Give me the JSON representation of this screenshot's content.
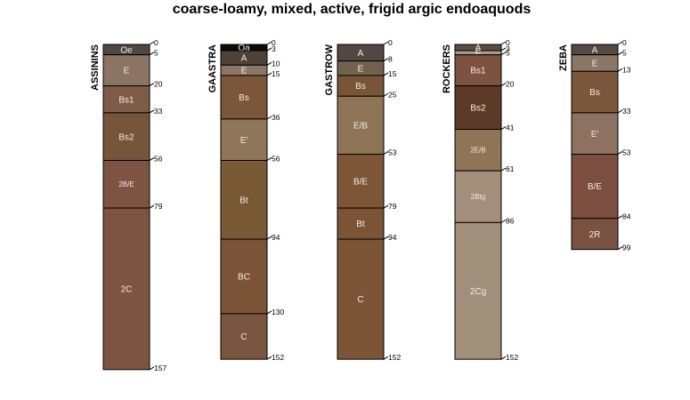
{
  "title": "coarse-loamy, mixed, active, frigid argic endoaquods",
  "profiles": [
    {
      "name": "ASSININS",
      "horizons": [
        {
          "name": "Oe",
          "top": 0,
          "bottom": 5,
          "color": "#4f4842"
        },
        {
          "name": "E",
          "top": 5,
          "bottom": 20,
          "color": "#8b7463"
        },
        {
          "name": "Bs1",
          "top": 20,
          "bottom": 33,
          "color": "#7e5c47"
        },
        {
          "name": "Bs2",
          "top": 33,
          "bottom": 56,
          "color": "#77553b"
        },
        {
          "name": "2B/E",
          "top": 56,
          "bottom": 79,
          "color": "#7c5441"
        },
        {
          "name": "2C",
          "top": 79,
          "bottom": 157,
          "color": "#7d5342"
        }
      ]
    },
    {
      "name": "GAASTRA",
      "horizons": [
        {
          "name": "Oa",
          "top": 0,
          "bottom": 3,
          "color": "#0d0b0a"
        },
        {
          "name": "A",
          "top": 3,
          "bottom": 10,
          "color": "#4e4238"
        },
        {
          "name": "E",
          "top": 10,
          "bottom": 15,
          "color": "#8c7565"
        },
        {
          "name": "Bs",
          "top": 15,
          "bottom": 36,
          "color": "#7c5639"
        },
        {
          "name": "E'",
          "top": 36,
          "bottom": 56,
          "color": "#8f7659"
        },
        {
          "name": "Bt",
          "top": 56,
          "bottom": 94,
          "color": "#7a5a35"
        },
        {
          "name": "BC",
          "top": 94,
          "bottom": 130,
          "color": "#7b5438"
        },
        {
          "name": "C",
          "top": 130,
          "bottom": 152,
          "color": "#7a5540"
        }
      ]
    },
    {
      "name": "GASTROW",
      "horizons": [
        {
          "name": "A",
          "top": 0,
          "bottom": 8,
          "color": "#534741"
        },
        {
          "name": "E",
          "top": 8,
          "bottom": 15,
          "color": "#72624d"
        },
        {
          "name": "Bs",
          "top": 15,
          "bottom": 25,
          "color": "#795537"
        },
        {
          "name": "E/B",
          "top": 25,
          "bottom": 53,
          "color": "#8e7456"
        },
        {
          "name": "B/E",
          "top": 53,
          "bottom": 79,
          "color": "#7c5637"
        },
        {
          "name": "Bt",
          "top": 79,
          "bottom": 94,
          "color": "#7b5435"
        },
        {
          "name": "C",
          "top": 94,
          "bottom": 152,
          "color": "#7b5536"
        }
      ]
    },
    {
      "name": "ROCKERS",
      "horizons": [
        {
          "name": "A",
          "top": 0,
          "bottom": 3,
          "color": "#5a4d43"
        },
        {
          "name": "E",
          "top": 3,
          "bottom": 5,
          "color": "#a8998b"
        },
        {
          "name": "Bs1",
          "top": 5,
          "bottom": 20,
          "color": "#7e5241"
        },
        {
          "name": "Bs2",
          "top": 20,
          "bottom": 41,
          "color": "#5d3a27"
        },
        {
          "name": "2E/B",
          "top": 41,
          "bottom": 61,
          "color": "#8f7456"
        },
        {
          "name": "2Btg",
          "top": 61,
          "bottom": 86,
          "color": "#a28e7a"
        },
        {
          "name": "2Cg",
          "top": 86,
          "bottom": 152,
          "color": "#a08f7b"
        }
      ]
    },
    {
      "name": "ZEBA",
      "horizons": [
        {
          "name": "A",
          "top": 0,
          "bottom": 5,
          "color": "#554a43"
        },
        {
          "name": "E",
          "top": 5,
          "bottom": 13,
          "color": "#8c7666"
        },
        {
          "name": "Bs",
          "top": 13,
          "bottom": 33,
          "color": "#7b573b"
        },
        {
          "name": "E'",
          "top": 33,
          "bottom": 53,
          "color": "#8d7261"
        },
        {
          "name": "B/E",
          "top": 53,
          "bottom": 84,
          "color": "#7b4e40"
        },
        {
          "name": "2R",
          "top": 84,
          "bottom": 99,
          "color": "#7a5242"
        }
      ]
    }
  ]
}
